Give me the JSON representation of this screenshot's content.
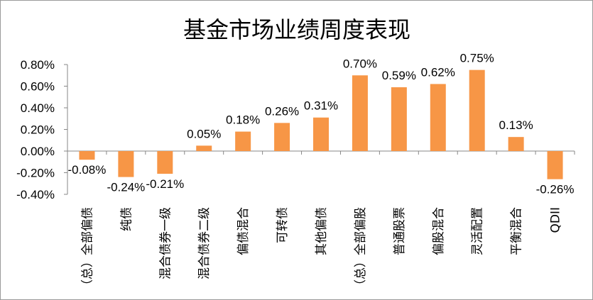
{
  "chart_data": {
    "type": "bar",
    "title": "基金市场业绩周度表现",
    "xlabel": "",
    "ylabel": "",
    "categories": [
      "（总）全部偏债",
      "纯债",
      "混合债券一级",
      "混合债券二级",
      "偏债混合",
      "可转债",
      "其他偏债",
      "（总）全部偏股",
      "普通股票",
      "偏股混合",
      "灵活配置",
      "平衡混合",
      "QDII"
    ],
    "values": [
      -0.08,
      -0.24,
      -0.21,
      0.05,
      0.18,
      0.26,
      0.31,
      0.7,
      0.59,
      0.62,
      0.75,
      0.13,
      -0.26
    ],
    "value_labels": [
      "-0.08%",
      "-0.24%",
      "-0.21%",
      "0.05%",
      "0.18%",
      "0.26%",
      "0.31%",
      "0.70%",
      "0.59%",
      "0.62%",
      "0.75%",
      "0.13%",
      "-0.26%"
    ],
    "yticks": [
      0.8,
      0.6,
      0.4,
      0.2,
      0.0,
      -0.2,
      -0.4
    ],
    "ytick_labels": [
      "0.80%",
      "0.60%",
      "0.40%",
      "0.20%",
      "0.00%",
      "-0.20%",
      "-0.40%"
    ],
    "ylim": [
      -0.4,
      0.8
    ],
    "grid": false,
    "legend": "none",
    "colors": {
      "bar": "#F79646",
      "axis": "#878787"
    }
  }
}
